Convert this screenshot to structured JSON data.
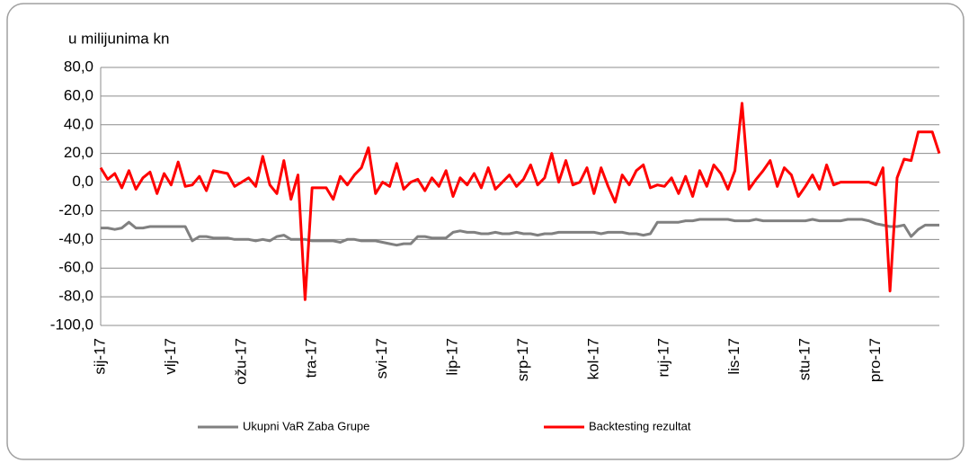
{
  "chart_data": {
    "type": "line",
    "annotation": "u milijunima kn",
    "categories": [
      "sij-17",
      null,
      null,
      null,
      null,
      null,
      null,
      null,
      null,
      null,
      "vlj-17",
      null,
      null,
      null,
      null,
      null,
      null,
      null,
      null,
      null,
      "ožu-17",
      null,
      null,
      null,
      null,
      null,
      null,
      null,
      null,
      null,
      "tra-17",
      null,
      null,
      null,
      null,
      null,
      null,
      null,
      null,
      null,
      "svi-17",
      null,
      null,
      null,
      null,
      null,
      null,
      null,
      null,
      null,
      "lip-17",
      null,
      null,
      null,
      null,
      null,
      null,
      null,
      null,
      null,
      "srp-17",
      null,
      null,
      null,
      null,
      null,
      null,
      null,
      null,
      null,
      "kol-17",
      null,
      null,
      null,
      null,
      null,
      null,
      null,
      null,
      null,
      "ruj-17",
      null,
      null,
      null,
      null,
      null,
      null,
      null,
      null,
      null,
      "lis-17",
      null,
      null,
      null,
      null,
      null,
      null,
      null,
      null,
      null,
      "stu-17",
      null,
      null,
      null,
      null,
      null,
      null,
      null,
      null,
      null,
      "pro-17",
      null,
      null,
      null,
      null,
      null,
      null,
      null,
      null,
      null
    ],
    "series": [
      {
        "name": "Ukupni VaR Zaba Grupe",
        "color": "#808080",
        "values": [
          -32,
          -32,
          -33,
          -32,
          -28,
          -32,
          -32,
          -31,
          -31,
          -31,
          -31,
          -31,
          -31,
          -41,
          -38,
          -38,
          -39,
          -39,
          -39,
          -40,
          -40,
          -40,
          -41,
          -40,
          -41,
          -38,
          -37,
          -40,
          -40,
          -40,
          -41,
          -41,
          -41,
          -41,
          -42,
          -40,
          -40,
          -41,
          -41,
          -41,
          -42,
          -43,
          -44,
          -43,
          -43,
          -38,
          -38,
          -39,
          -39,
          -39,
          -35,
          -34,
          -35,
          -35,
          -36,
          -36,
          -35,
          -36,
          -36,
          -35,
          -36,
          -36,
          -37,
          -36,
          -36,
          -35,
          -35,
          -35,
          -35,
          -35,
          -35,
          -36,
          -35,
          -35,
          -35,
          -36,
          -36,
          -37,
          -36,
          -28,
          -28,
          -28,
          -28,
          -27,
          -27,
          -26,
          -26,
          -26,
          -26,
          -26,
          -27,
          -27,
          -27,
          -26,
          -27,
          -27,
          -27,
          -27,
          -27,
          -27,
          -27,
          -26,
          -27,
          -27,
          -27,
          -27,
          -26,
          -26,
          -26,
          -27,
          -29,
          -30,
          -31,
          -31,
          -30,
          -38,
          -33,
          -30,
          -30,
          -30
        ]
      },
      {
        "name": "Backtesting rezultat",
        "color": "#ff0000",
        "values": [
          10,
          2,
          6,
          -4,
          8,
          -5,
          3,
          7,
          -8,
          6,
          -2,
          14,
          -3,
          -2,
          4,
          -6,
          8,
          7,
          6,
          -3,
          0,
          3,
          -3,
          18,
          -2,
          -8,
          15,
          -12,
          5,
          -82,
          -4,
          -4,
          -4,
          -12,
          4,
          -2,
          5,
          10,
          24,
          -8,
          0,
          -3,
          13,
          -5,
          0,
          2,
          -6,
          3,
          -3,
          8,
          -10,
          3,
          -2,
          6,
          -4,
          10,
          -5,
          0,
          5,
          -3,
          2,
          12,
          -2,
          3,
          20,
          0,
          15,
          -2,
          0,
          10,
          -8,
          10,
          -3,
          -14,
          5,
          -2,
          8,
          12,
          -4,
          -2,
          -3,
          3,
          -8,
          4,
          -10,
          8,
          -3,
          12,
          6,
          -5,
          8,
          55,
          -5,
          2,
          8,
          15,
          -3,
          10,
          5,
          -10,
          -3,
          5,
          -5,
          12,
          -2,
          0,
          0,
          0,
          0,
          0,
          -2,
          10,
          -76,
          3,
          16,
          15,
          35,
          35,
          35,
          20
        ]
      }
    ],
    "ylim": [
      -100,
      80
    ],
    "yticks": [
      {
        "value": -100,
        "label": "-100,0"
      },
      {
        "value": -80,
        "label": "-80,0"
      },
      {
        "value": -60,
        "label": "-60,0"
      },
      {
        "value": -40,
        "label": "-40,0"
      },
      {
        "value": -20,
        "label": "-20,0"
      },
      {
        "value": 0,
        "label": "0,0"
      },
      {
        "value": 20,
        "label": "20,0"
      },
      {
        "value": 40,
        "label": "40,0"
      },
      {
        "value": 60,
        "label": "60,0"
      },
      {
        "value": 80,
        "label": "80,0"
      }
    ],
    "grid": true,
    "legend": "bottom"
  }
}
